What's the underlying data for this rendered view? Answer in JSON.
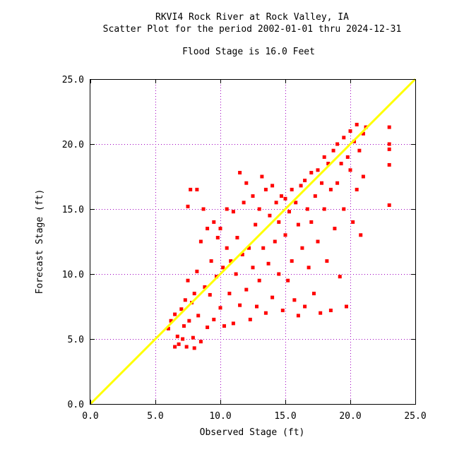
{
  "chart_data": {
    "type": "scatter",
    "title_lines": [
      "RKVI4 Rock River at Rock Valley, IA",
      "Scatter Plot for the period 2002-01-01 thru 2024-12-31",
      "Flood Stage is 16.0 Feet"
    ],
    "xlabel": "Observed Stage (ft)",
    "ylabel": "Forecast Stage (ft)",
    "xlim": [
      0,
      25
    ],
    "ylim": [
      0,
      25
    ],
    "x_ticks": [
      "0.0",
      "5.0",
      "10.0",
      "15.0",
      "20.0",
      "25.0"
    ],
    "y_ticks": [
      "0.0",
      "5.0",
      "10.0",
      "15.0",
      "20.0",
      "25.0"
    ],
    "grid": true,
    "reference_line": {
      "from": [
        0,
        0
      ],
      "to": [
        25,
        25
      ],
      "color": "#ffff00"
    },
    "point_color": "#ff0000",
    "gridline_color": "#a000c0",
    "series": [
      {
        "points": [
          [
            6.0,
            5.8
          ],
          [
            6.2,
            6.4
          ],
          [
            6.5,
            4.4
          ],
          [
            6.5,
            6.9
          ],
          [
            6.7,
            5.2
          ],
          [
            6.8,
            4.6
          ],
          [
            7.0,
            7.3
          ],
          [
            7.1,
            5.0
          ],
          [
            7.2,
            6.0
          ],
          [
            7.3,
            8.0
          ],
          [
            7.4,
            4.4
          ],
          [
            7.5,
            9.5
          ],
          [
            7.5,
            15.2
          ],
          [
            7.6,
            6.4
          ],
          [
            7.7,
            16.5
          ],
          [
            7.8,
            7.8
          ],
          [
            7.9,
            5.1
          ],
          [
            8.0,
            8.5
          ],
          [
            8.0,
            4.3
          ],
          [
            8.2,
            16.5
          ],
          [
            8.2,
            10.2
          ],
          [
            8.3,
            6.8
          ],
          [
            8.5,
            12.5
          ],
          [
            8.5,
            4.8
          ],
          [
            8.7,
            15.0
          ],
          [
            8.8,
            9.0
          ],
          [
            9.0,
            13.5
          ],
          [
            9.0,
            5.9
          ],
          [
            9.2,
            8.4
          ],
          [
            9.3,
            11.0
          ],
          [
            9.5,
            14.0
          ],
          [
            9.5,
            6.5
          ],
          [
            9.7,
            9.8
          ],
          [
            9.8,
            12.8
          ],
          [
            10.0,
            7.4
          ],
          [
            10.0,
            13.5
          ],
          [
            10.2,
            10.5
          ],
          [
            10.3,
            6.0
          ],
          [
            10.5,
            12.0
          ],
          [
            10.5,
            15.0
          ],
          [
            10.7,
            8.5
          ],
          [
            10.8,
            11.0
          ],
          [
            11.0,
            6.2
          ],
          [
            11.0,
            14.8
          ],
          [
            11.2,
            10.0
          ],
          [
            11.3,
            12.8
          ],
          [
            11.5,
            17.8
          ],
          [
            11.5,
            7.6
          ],
          [
            11.7,
            11.5
          ],
          [
            11.8,
            15.5
          ],
          [
            12.0,
            8.8
          ],
          [
            12.0,
            17.0
          ],
          [
            12.2,
            12.0
          ],
          [
            12.3,
            6.5
          ],
          [
            12.5,
            16.0
          ],
          [
            12.5,
            10.5
          ],
          [
            12.7,
            13.8
          ],
          [
            12.8,
            7.5
          ],
          [
            13.0,
            15.0
          ],
          [
            13.0,
            9.5
          ],
          [
            13.2,
            17.5
          ],
          [
            13.3,
            12.0
          ],
          [
            13.5,
            16.5
          ],
          [
            13.5,
            7.0
          ],
          [
            13.7,
            10.8
          ],
          [
            13.8,
            14.5
          ],
          [
            14.0,
            16.8
          ],
          [
            14.0,
            8.2
          ],
          [
            14.2,
            12.5
          ],
          [
            14.3,
            15.5
          ],
          [
            14.5,
            10.0
          ],
          [
            14.5,
            14.0
          ],
          [
            14.7,
            16.0
          ],
          [
            14.8,
            7.2
          ],
          [
            15.0,
            13.0
          ],
          [
            15.0,
            15.8
          ],
          [
            15.2,
            9.5
          ],
          [
            15.3,
            14.8
          ],
          [
            15.5,
            16.5
          ],
          [
            15.5,
            11.0
          ],
          [
            15.7,
            8.0
          ],
          [
            15.8,
            15.5
          ],
          [
            16.0,
            13.8
          ],
          [
            16.0,
            6.8
          ],
          [
            16.2,
            16.8
          ],
          [
            16.3,
            12.0
          ],
          [
            16.5,
            17.2
          ],
          [
            16.5,
            7.5
          ],
          [
            16.7,
            15.0
          ],
          [
            16.8,
            10.5
          ],
          [
            17.0,
            17.8
          ],
          [
            17.0,
            14.0
          ],
          [
            17.2,
            8.5
          ],
          [
            17.3,
            16.0
          ],
          [
            17.5,
            18.0
          ],
          [
            17.5,
            12.5
          ],
          [
            17.7,
            7.0
          ],
          [
            17.8,
            17.0
          ],
          [
            18.0,
            19.0
          ],
          [
            18.0,
            15.0
          ],
          [
            18.2,
            11.0
          ],
          [
            18.3,
            18.5
          ],
          [
            18.5,
            16.5
          ],
          [
            18.5,
            7.2
          ],
          [
            18.7,
            19.5
          ],
          [
            18.8,
            13.5
          ],
          [
            19.0,
            20.0
          ],
          [
            19.0,
            17.0
          ],
          [
            19.2,
            9.8
          ],
          [
            19.3,
            18.5
          ],
          [
            19.5,
            20.5
          ],
          [
            19.5,
            15.0
          ],
          [
            19.7,
            7.5
          ],
          [
            19.8,
            19.0
          ],
          [
            20.0,
            21.0
          ],
          [
            20.0,
            18.0
          ],
          [
            20.2,
            14.0
          ],
          [
            20.3,
            20.2
          ],
          [
            20.5,
            21.5
          ],
          [
            20.5,
            16.5
          ],
          [
            20.7,
            19.5
          ],
          [
            20.8,
            13.0
          ],
          [
            21.0,
            20.8
          ],
          [
            21.0,
            17.5
          ],
          [
            21.2,
            21.3
          ],
          [
            23.0,
            21.3
          ],
          [
            23.0,
            20.0
          ],
          [
            23.0,
            19.6
          ],
          [
            23.0,
            18.4
          ],
          [
            23.0,
            15.3
          ]
        ]
      }
    ]
  }
}
